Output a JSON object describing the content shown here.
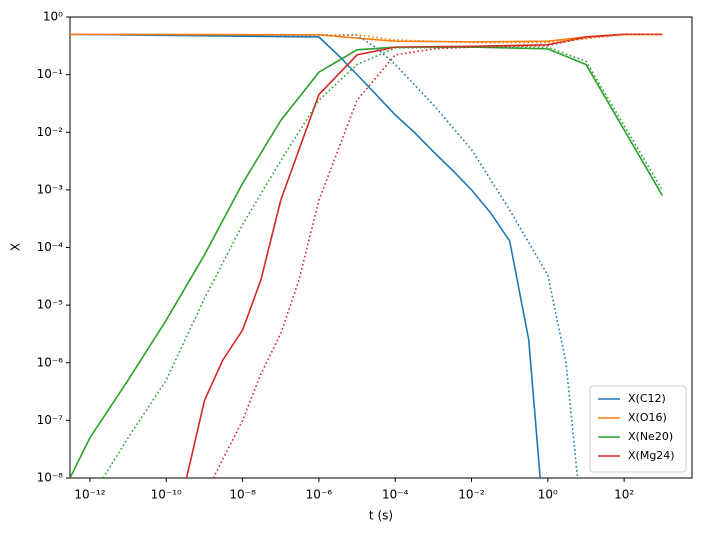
{
  "chart_data": {
    "type": "line",
    "xlabel": "t (s)",
    "ylabel": "X",
    "xscale": "log",
    "yscale": "log",
    "xlim": [
      3e-13,
      6000
    ],
    "ylim": [
      1e-08,
      1
    ],
    "xticks": [
      {
        "value": 1e-12,
        "label": "10⁻¹²"
      },
      {
        "value": 1e-10,
        "label": "10⁻¹⁰"
      },
      {
        "value": 1e-08,
        "label": "10⁻⁸"
      },
      {
        "value": 1e-06,
        "label": "10⁻⁶"
      },
      {
        "value": 0.0001,
        "label": "10⁻⁴"
      },
      {
        "value": 0.01,
        "label": "10⁻²"
      },
      {
        "value": 1,
        "label": "10⁰"
      },
      {
        "value": 100,
        "label": "10²"
      }
    ],
    "yticks": [
      {
        "value": 1e-08,
        "label": "10⁻⁸"
      },
      {
        "value": 1e-07,
        "label": "10⁻⁷"
      },
      {
        "value": 1e-06,
        "label": "10⁻⁶"
      },
      {
        "value": 1e-05,
        "label": "10⁻⁵"
      },
      {
        "value": 0.0001,
        "label": "10⁻⁴"
      },
      {
        "value": 0.001,
        "label": "10⁻³"
      },
      {
        "value": 0.01,
        "label": "10⁻²"
      },
      {
        "value": 0.1,
        "label": "10⁻¹"
      },
      {
        "value": 1,
        "label": "10⁰"
      }
    ],
    "legend": "lower right",
    "series": [
      {
        "name": "X(C12)",
        "color": "#1f77b4",
        "linestyle": "solid",
        "x": [
          3e-13,
          1e-06,
          3.16e-06,
          1e-05,
          3.16e-05,
          0.0001,
          0.000316,
          0.001,
          0.00316,
          0.01,
          0.0316,
          0.1,
          0.316,
          0.63
        ],
        "values": [
          0.5,
          0.45,
          0.22,
          0.1,
          0.045,
          0.02,
          0.01,
          0.0046,
          0.0022,
          0.001,
          0.0004,
          0.00013,
          2.5e-06,
          1e-08
        ]
      },
      {
        "name": "X(O16)",
        "color": "#ff7f0e",
        "linestyle": "solid",
        "x": [
          3e-13,
          1e-06,
          1e-05,
          0.0001,
          0.01,
          1,
          10,
          100,
          1000
        ],
        "values": [
          0.5,
          0.49,
          0.43,
          0.38,
          0.37,
          0.38,
          0.45,
          0.5,
          0.5
        ]
      },
      {
        "name": "X(Ne20)",
        "color": "#2ca02c",
        "linestyle": "solid",
        "x": [
          3e-13,
          1e-12,
          1e-11,
          1e-10,
          1e-09,
          1e-08,
          1e-07,
          1e-06,
          1e-05,
          0.0001,
          0.01,
          1,
          10,
          100,
          1000
        ],
        "values": [
          1e-08,
          5e-08,
          5e-07,
          5.5e-06,
          7.4e-05,
          0.0013,
          0.016,
          0.11,
          0.27,
          0.3,
          0.3,
          0.28,
          0.15,
          0.011,
          0.0008
        ]
      },
      {
        "name": "X(Mg24)",
        "color": "#d62728",
        "linestyle": "solid",
        "x": [
          3.4e-10,
          1e-09,
          3e-09,
          1e-08,
          3e-08,
          1e-07,
          1e-06,
          1e-05,
          0.0001,
          0.01,
          1,
          10,
          100,
          1000
        ],
        "values": [
          1e-08,
          2.2e-07,
          1.1e-06,
          3.7e-06,
          2.7e-05,
          0.00066,
          0.045,
          0.22,
          0.3,
          0.31,
          0.33,
          0.45,
          0.5,
          0.5
        ]
      },
      {
        "color": "#1f77b4",
        "linestyle": "dotted",
        "x": [
          3e-13,
          1e-05,
          3e-05,
          0.0001,
          0.001,
          0.01,
          0.1,
          1,
          3,
          6
        ],
        "values": [
          0.5,
          0.48,
          0.3,
          0.15,
          0.03,
          0.005,
          0.00045,
          3.3e-05,
          1e-06,
          1e-08
        ]
      },
      {
        "color": "#ff7f0e",
        "linestyle": "dotted",
        "x": [
          3e-13,
          1e-05,
          0.0001,
          0.01,
          1,
          10,
          100,
          1000
        ],
        "values": [
          0.5,
          0.49,
          0.4,
          0.36,
          0.36,
          0.42,
          0.49,
          0.5
        ]
      },
      {
        "color": "#2ca02c",
        "linestyle": "dotted",
        "x": [
          2.2e-12,
          1e-11,
          1e-10,
          1e-09,
          1e-08,
          1e-07,
          1e-06,
          1e-05,
          0.0001,
          0.01,
          1,
          10,
          100,
          1000
        ],
        "values": [
          1e-08,
          5e-08,
          5e-07,
          1.3e-05,
          0.00025,
          0.0032,
          0.036,
          0.15,
          0.29,
          0.3,
          0.3,
          0.17,
          0.013,
          0.001
        ]
      },
      {
        "color": "#d62728",
        "linestyle": "dotted",
        "x": [
          1.7e-09,
          1e-08,
          3e-08,
          1e-07,
          3e-07,
          1e-06,
          1e-05,
          0.0001,
          0.001,
          0.01,
          1,
          10,
          100,
          1000
        ],
        "values": [
          1e-08,
          1e-07,
          6.3e-07,
          3.2e-06,
          2.7e-05,
          0.00066,
          0.036,
          0.22,
          0.28,
          0.3,
          0.32,
          0.44,
          0.5,
          0.5
        ]
      }
    ]
  }
}
